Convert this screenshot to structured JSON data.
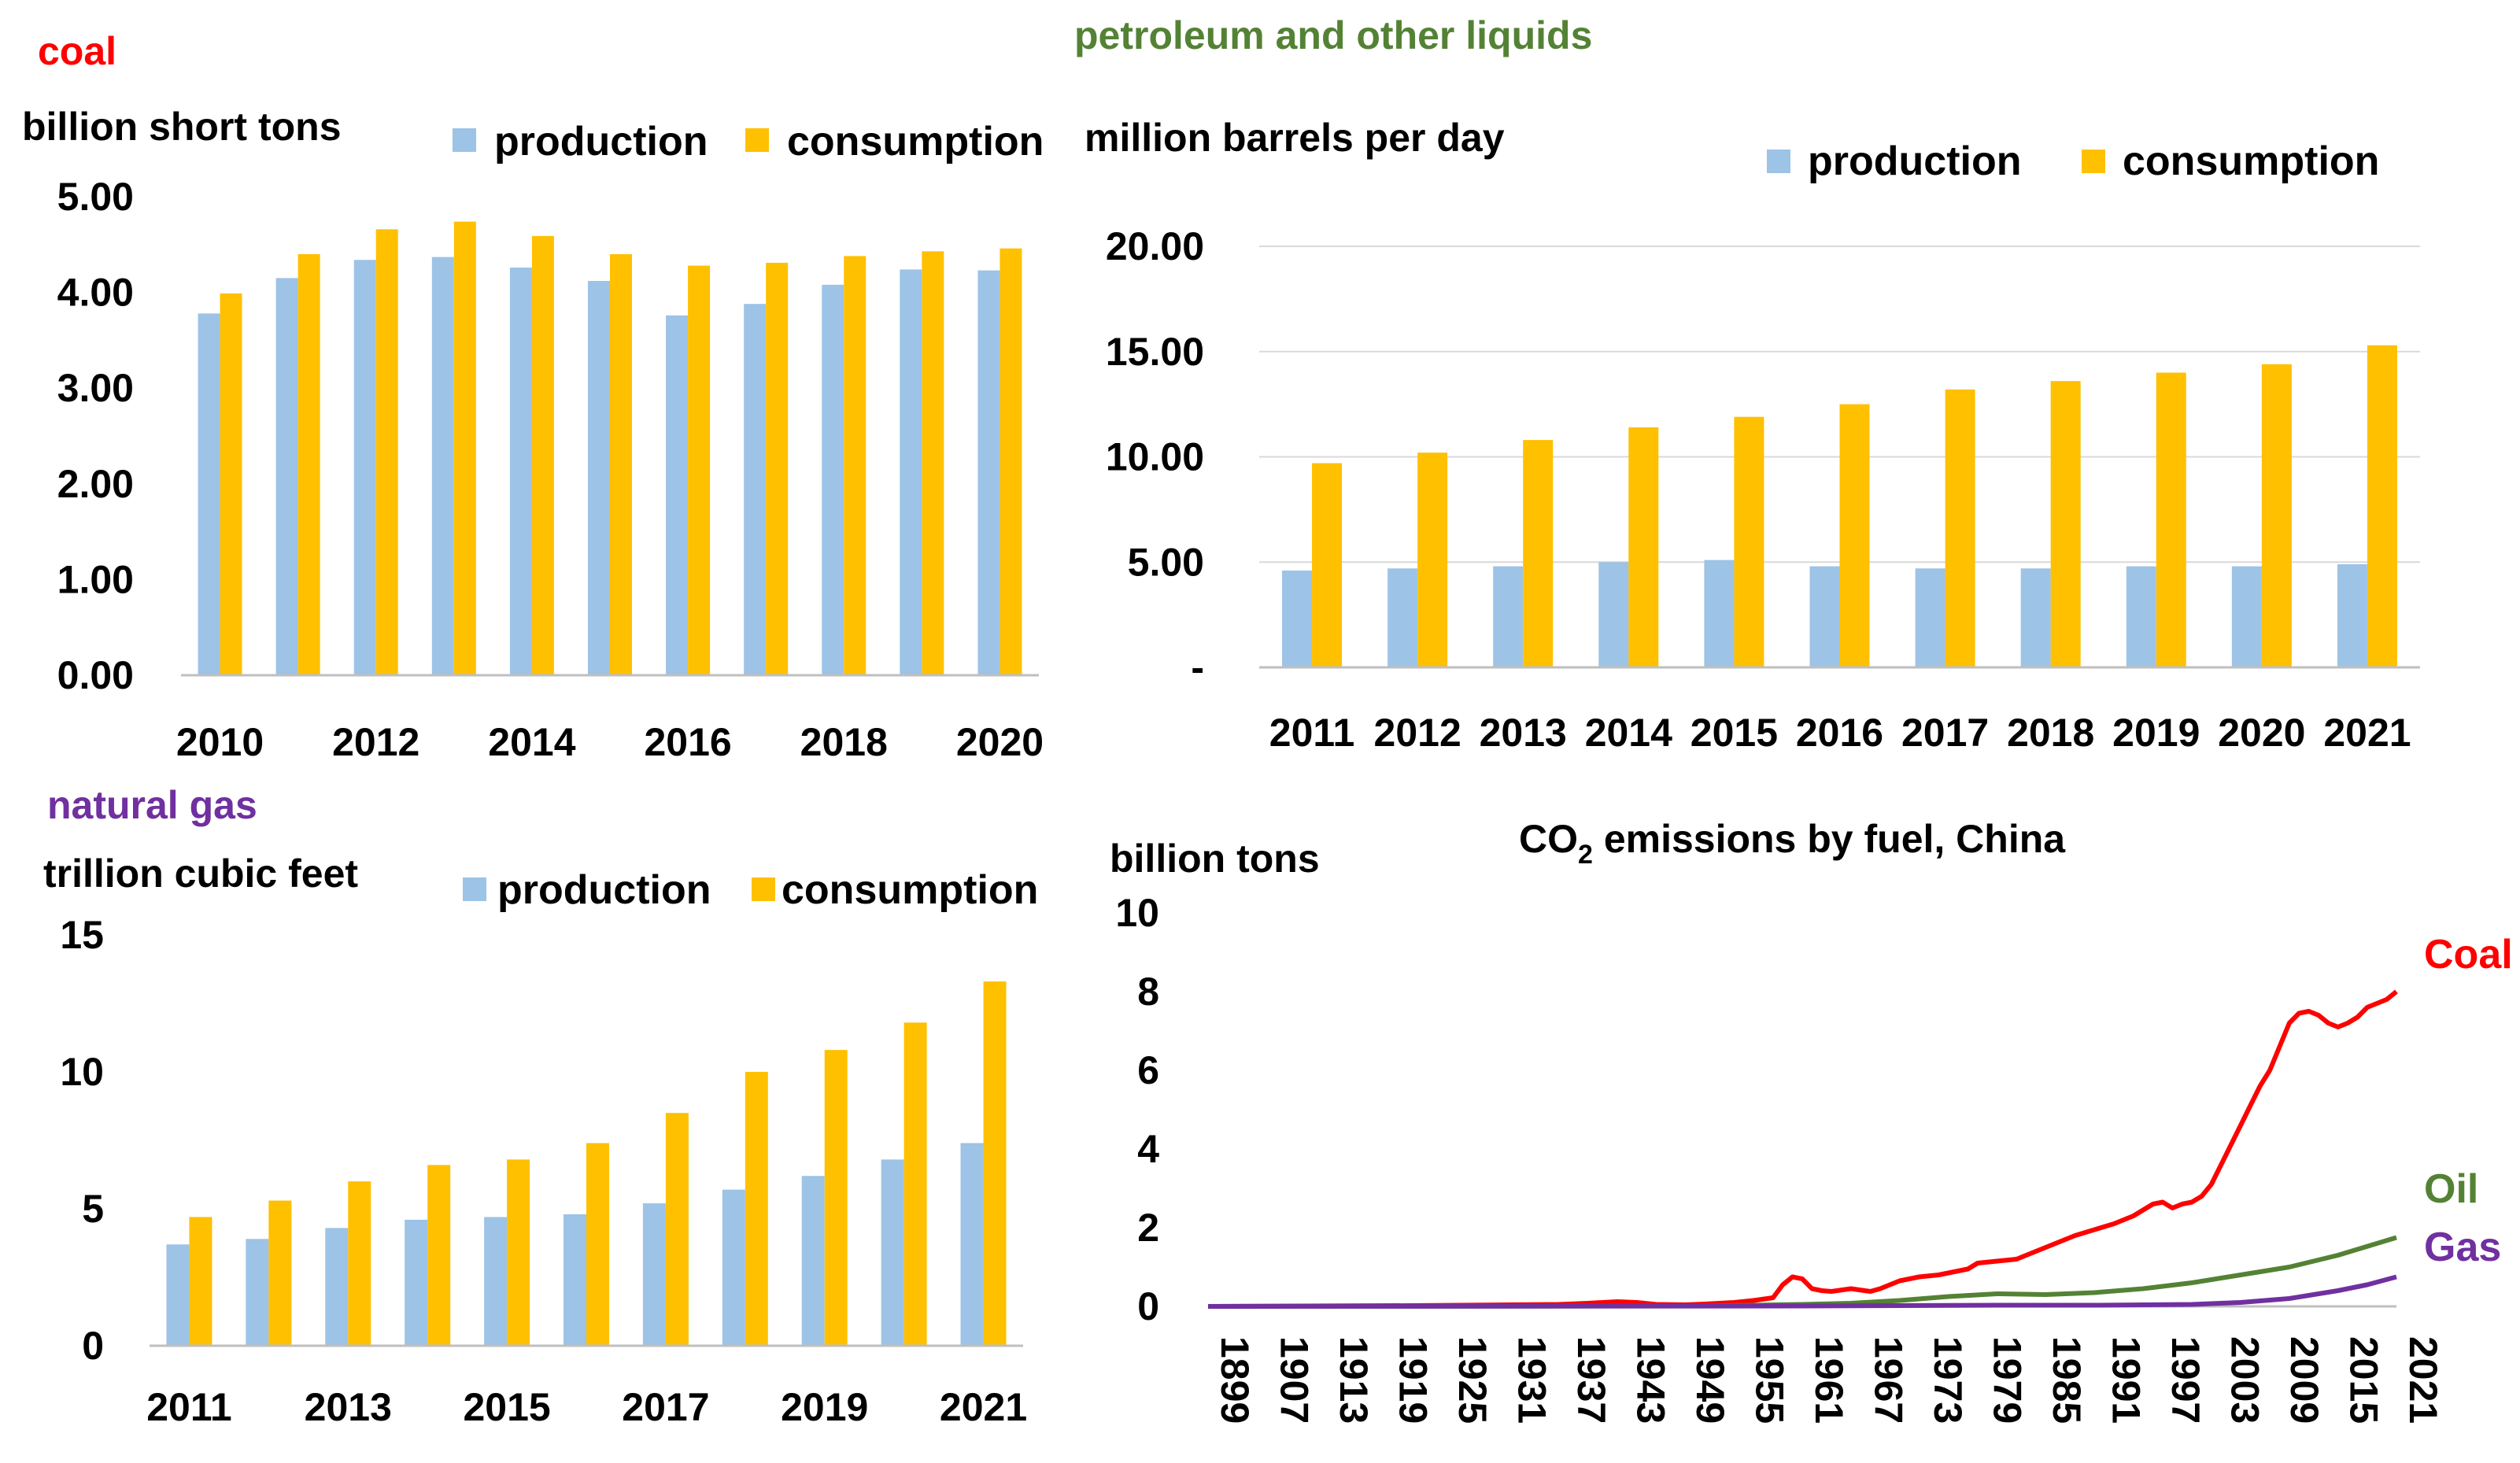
{
  "colors": {
    "production": "#9dc3e6",
    "consumption": "#ffc000",
    "coal_title": "#ff0000",
    "petroleum_title": "#548235",
    "gas_title": "#7030a0",
    "coal_line": "#ff0000",
    "oil_line": "#548235",
    "gas_line": "#7030a0",
    "grid": "#d9d9d9",
    "axis": "#bfbfbf"
  },
  "chart_data": [
    {
      "id": "coal",
      "type": "bar",
      "title": "coal",
      "ylabel": "billion short tons",
      "ylim": [
        0,
        5
      ],
      "yticks": [
        "0.00",
        "1.00",
        "2.00",
        "3.00",
        "4.00",
        "5.00"
      ],
      "categories": [
        "2010",
        "2011",
        "2012",
        "2013",
        "2014",
        "2015",
        "2016",
        "2017",
        "2018",
        "2019",
        "2020"
      ],
      "xtick_labels": [
        "2010",
        "",
        "2012",
        "",
        "2014",
        "",
        "2016",
        "",
        "2018",
        "",
        "2020"
      ],
      "series": [
        {
          "name": "production",
          "values": [
            3.78,
            4.15,
            4.34,
            4.37,
            4.26,
            4.12,
            3.76,
            3.88,
            4.08,
            4.24,
            4.23
          ]
        },
        {
          "name": "consumption",
          "values": [
            3.99,
            4.4,
            4.66,
            4.74,
            4.59,
            4.4,
            4.28,
            4.31,
            4.38,
            4.43,
            4.46
          ]
        }
      ],
      "legend": [
        "production",
        "consumption"
      ]
    },
    {
      "id": "petroleum",
      "type": "bar",
      "title": "petroleum and other liquids",
      "ylabel": "million barrels per day",
      "ylim": [
        0,
        20
      ],
      "yticks": [
        "-",
        "5.00",
        "10.00",
        "15.00",
        "20.00"
      ],
      "categories": [
        "2011",
        "2012",
        "2013",
        "2014",
        "2015",
        "2016",
        "2017",
        "2018",
        "2019",
        "2020",
        "2021"
      ],
      "xtick_labels": [
        "2011",
        "2012",
        "2013",
        "2014",
        "2015",
        "2016",
        "2017",
        "2018",
        "2019",
        "2020",
        "2021"
      ],
      "series": [
        {
          "name": "production",
          "values": [
            4.6,
            4.7,
            4.8,
            5.0,
            5.1,
            4.8,
            4.7,
            4.7,
            4.8,
            4.8,
            4.9
          ]
        },
        {
          "name": "consumption",
          "values": [
            9.7,
            10.2,
            10.8,
            11.4,
            11.9,
            12.5,
            13.2,
            13.6,
            14.0,
            14.4,
            15.3
          ]
        }
      ],
      "legend": [
        "production",
        "consumption"
      ]
    },
    {
      "id": "gas",
      "type": "bar",
      "title": "natural gas",
      "ylabel": "trillion cubic feet",
      "ylim": [
        0,
        15
      ],
      "yticks": [
        "0",
        "5",
        "10",
        "15"
      ],
      "categories": [
        "2011",
        "2012",
        "2013",
        "2014",
        "2015",
        "2016",
        "2017",
        "2018",
        "2019",
        "2020",
        "2021"
      ],
      "xtick_labels": [
        "2011",
        "",
        "2013",
        "",
        "2015",
        "",
        "2017",
        "",
        "2019",
        "",
        "2021"
      ],
      "series": [
        {
          "name": "production",
          "values": [
            3.7,
            3.9,
            4.3,
            4.6,
            4.7,
            4.8,
            5.2,
            5.7,
            6.2,
            6.8,
            7.4
          ]
        },
        {
          "name": "consumption",
          "values": [
            4.7,
            5.3,
            6.0,
            6.6,
            6.8,
            7.4,
            8.5,
            10.0,
            10.8,
            11.8,
            13.3
          ]
        }
      ],
      "legend": [
        "production",
        "consumption"
      ]
    },
    {
      "id": "co2",
      "type": "line",
      "title": "CO2 emissions by fuel, China",
      "title_main": "CO",
      "title_sub": "2",
      "title_rest": " emissions by fuel, China",
      "ylabel": "billion tons",
      "ylim": [
        0,
        10
      ],
      "yticks": [
        "0",
        "2",
        "4",
        "6",
        "8",
        "10"
      ],
      "xlim": [
        1899,
        2021
      ],
      "xtick_labels": [
        "1899",
        "1907",
        "1913",
        "1919",
        "1925",
        "1931",
        "1937",
        "1943",
        "1949",
        "1955",
        "1961",
        "1967",
        "1973",
        "1979",
        "1985",
        "1991",
        "1997",
        "2003",
        "2009",
        "2015",
        "2021"
      ],
      "series": [
        {
          "name": "Coal",
          "label": "Coal",
          "x": [
            1899,
            1920,
            1935,
            1938,
            1941,
            1943,
            1945,
            1948,
            1950,
            1953,
            1955,
            1957,
            1958,
            1959,
            1960,
            1961,
            1962,
            1963,
            1965,
            1967,
            1968,
            1970,
            1972,
            1974,
            1975,
            1977,
            1978,
            1980,
            1982,
            1984,
            1986,
            1988,
            1990,
            1992,
            1994,
            1996,
            1997,
            1998,
            1999,
            2000,
            2001,
            2002,
            2003,
            2004,
            2005,
            2006,
            2007,
            2008,
            2009,
            2010,
            2011,
            2012,
            2013,
            2014,
            2015,
            2016,
            2017,
            2018,
            2019,
            2020,
            2021
          ],
          "y": [
            0,
            0.02,
            0.05,
            0.08,
            0.12,
            0.1,
            0.05,
            0.04,
            0.06,
            0.1,
            0.15,
            0.22,
            0.55,
            0.75,
            0.7,
            0.45,
            0.4,
            0.38,
            0.45,
            0.38,
            0.45,
            0.65,
            0.75,
            0.8,
            0.85,
            0.95,
            1.1,
            1.15,
            1.2,
            1.4,
            1.6,
            1.8,
            1.95,
            2.1,
            2.3,
            2.6,
            2.65,
            2.5,
            2.6,
            2.65,
            2.8,
            3.1,
            3.6,
            4.1,
            4.6,
            5.1,
            5.6,
            6.0,
            6.6,
            7.2,
            7.45,
            7.5,
            7.4,
            7.2,
            7.1,
            7.2,
            7.35,
            7.6,
            7.7,
            7.8,
            8.0
          ]
        },
        {
          "name": "Oil",
          "label": "Oil",
          "x": [
            1899,
            1950,
            1960,
            1965,
            1970,
            1975,
            1980,
            1985,
            1990,
            1995,
            2000,
            2005,
            2010,
            2015,
            2021
          ],
          "y": [
            0,
            0.01,
            0.05,
            0.08,
            0.15,
            0.25,
            0.32,
            0.3,
            0.35,
            0.45,
            0.6,
            0.8,
            1.0,
            1.3,
            1.75
          ]
        },
        {
          "name": "Gas",
          "label": "Gas",
          "x": [
            1899,
            1960,
            1980,
            1990,
            2000,
            2005,
            2010,
            2015,
            2018,
            2021
          ],
          "y": [
            0,
            0.01,
            0.03,
            0.03,
            0.05,
            0.1,
            0.2,
            0.4,
            0.55,
            0.75
          ]
        }
      ]
    }
  ]
}
